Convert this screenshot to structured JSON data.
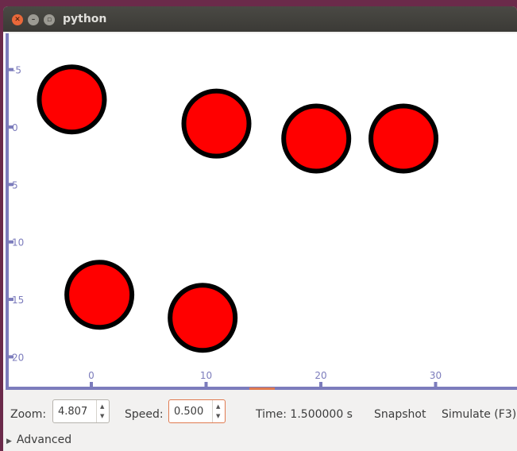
{
  "window": {
    "title": "python"
  },
  "plot": {
    "x_ticks": [
      "0",
      "10",
      "20",
      "30"
    ],
    "y_ticks": [
      "-5",
      "0",
      "5",
      "10",
      "15",
      "20"
    ]
  },
  "chart_data": {
    "type": "scatter",
    "x_ticks": [
      0,
      10,
      20,
      30
    ],
    "y_ticks": [
      -5,
      0,
      5,
      10,
      15,
      20
    ],
    "xlim": [
      -8,
      37
    ],
    "ylim": [
      -7,
      22
    ],
    "y_inverted": true,
    "marker_color": "#ff0000",
    "marker_edge_color": "#000000",
    "points": [
      {
        "x": -1.7,
        "y": -2.4
      },
      {
        "x": 10.9,
        "y": -0.3
      },
      {
        "x": 19.6,
        "y": 1.0
      },
      {
        "x": 27.2,
        "y": 1.0
      },
      {
        "x": 0.7,
        "y": 14.6
      },
      {
        "x": 9.7,
        "y": 16.6
      }
    ]
  },
  "controls": {
    "zoom_label": "Zoom:",
    "zoom_value": "4.807",
    "speed_label": "Speed:",
    "speed_value": "0.500",
    "time_label": "Time: 1.500000 s",
    "snapshot_label": "Snapshot",
    "simulate_label": "Simulate (F3)",
    "advanced_label": "Advanced"
  },
  "colors": {
    "axis": "#7c7cbc",
    "accent": "#e07a50",
    "marker": "#ff0000"
  }
}
